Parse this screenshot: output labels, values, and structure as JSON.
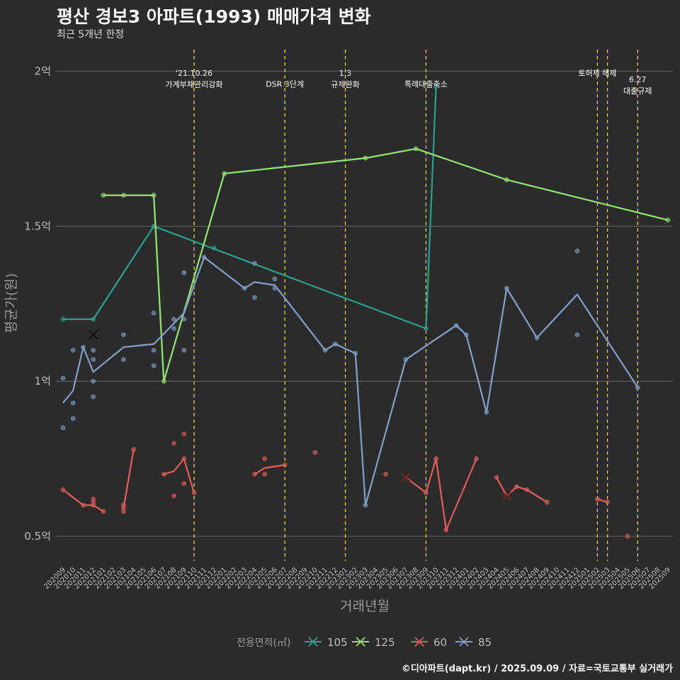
{
  "header": {
    "title": "평산 경보3 아파트(1993) 매매가격 변화",
    "subtitle": "최근 5개년 한정"
  },
  "footer": {
    "credit": "©디아파트(dapt.kr) / 2025.09.09 / 자료=국토교통부 실거래가"
  },
  "chart_data": {
    "type": "line",
    "xlabel": "거래년월",
    "ylabel": "평균가(원)",
    "categories": [
      "202009",
      "202010",
      "202011",
      "202012",
      "202101",
      "202102",
      "202103",
      "202104",
      "202105",
      "202106",
      "202107",
      "202108",
      "202109",
      "202110",
      "202111",
      "202112",
      "202201",
      "202202",
      "202203",
      "202204",
      "202205",
      "202206",
      "202207",
      "202208",
      "202209",
      "202210",
      "202211",
      "202212",
      "202301",
      "202302",
      "202303",
      "202304",
      "202305",
      "202306",
      "202307",
      "202308",
      "202309",
      "202310",
      "202311",
      "202312",
      "202401",
      "202402",
      "202403",
      "202404",
      "202405",
      "202406",
      "202407",
      "202408",
      "202409",
      "202410",
      "202411",
      "202412",
      "202501",
      "202502",
      "202503",
      "202504",
      "202505",
      "202506",
      "202507",
      "202508",
      "202509"
    ],
    "y_ticks": [
      {
        "value": 0.5,
        "label": "0.5억"
      },
      {
        "value": 1.0,
        "label": "1억"
      },
      {
        "value": 1.5,
        "label": "1.5억"
      },
      {
        "value": 2.0,
        "label": "2억"
      }
    ],
    "ylim": [
      0.42,
      2.07
    ],
    "legend": {
      "title": "전용면적(㎡)",
      "position": "bottom"
    },
    "series": [
      {
        "name": "105",
        "color": "#2a9d8f",
        "line": [
          [
            "202009",
            1.2
          ],
          [
            "202012",
            1.2
          ],
          [
            "202106",
            1.5
          ],
          [
            "202309",
            1.17
          ],
          [
            "202310",
            1.95
          ]
        ],
        "points": [
          [
            "202009",
            1.2
          ],
          [
            "202012",
            1.2
          ],
          [
            "202106",
            1.5
          ],
          [
            "202112",
            1.43
          ],
          [
            "202309",
            1.17
          ],
          [
            "202310",
            1.95
          ]
        ],
        "crosses": []
      },
      {
        "name": "125",
        "color": "#90e070",
        "line": [
          [
            "202101",
            1.6
          ],
          [
            "202103",
            1.6
          ],
          [
            "202106",
            1.6
          ],
          [
            "202107",
            1.0
          ],
          [
            "202201",
            1.67
          ],
          [
            "202303",
            1.72
          ],
          [
            "202308",
            1.75
          ],
          [
            "202405",
            1.65
          ],
          [
            "202509",
            1.52
          ]
        ],
        "points": [
          [
            "202101",
            1.6
          ],
          [
            "202103",
            1.6
          ],
          [
            "202106",
            1.6
          ],
          [
            "202107",
            1.0
          ],
          [
            "202201",
            1.67
          ],
          [
            "202303",
            1.72
          ],
          [
            "202308",
            1.75
          ],
          [
            "202405",
            1.65
          ],
          [
            "202509",
            1.52
          ]
        ],
        "crosses": []
      },
      {
        "name": "60",
        "color": "#e05a5a",
        "line": [
          [
            [
              "202009",
              0.65
            ],
            [
              "202011",
              0.6
            ],
            [
              "202012",
              0.6
            ],
            [
              "202101",
              0.58
            ]
          ],
          [
            [
              "202103",
              0.59
            ],
            [
              "202104",
              0.78
            ]
          ],
          [
            [
              "202107",
              0.7
            ],
            [
              "202108",
              0.71
            ],
            [
              "202109",
              0.75
            ],
            [
              "202110",
              0.64
            ]
          ],
          [
            [
              "202204",
              0.7
            ],
            [
              "202205",
              0.72
            ],
            [
              "202207",
              0.73
            ]
          ],
          [
            [
              "202307",
              0.69
            ],
            [
              "202309",
              0.64
            ],
            [
              "202310",
              0.75
            ],
            [
              "202311",
              0.52
            ],
            [
              "202402",
              0.75
            ]
          ],
          [
            [
              "202404",
              0.69
            ],
            [
              "202405",
              0.63
            ],
            [
              "202406",
              0.66
            ],
            [
              "202407",
              0.65
            ],
            [
              "202409",
              0.61
            ]
          ],
          [
            [
              "202502",
              0.62
            ],
            [
              "202503",
              0.61
            ]
          ]
        ],
        "points": [
          [
            "202009",
            0.65
          ],
          [
            "202011",
            0.6
          ],
          [
            "202012",
            0.61
          ],
          [
            "202012",
            0.62
          ],
          [
            "202012",
            0.6
          ],
          [
            "202101",
            0.58
          ],
          [
            "202103",
            0.58
          ],
          [
            "202103",
            0.59
          ],
          [
            "202103",
            0.6
          ],
          [
            "202104",
            0.78
          ],
          [
            "202107",
            0.7
          ],
          [
            "202108",
            0.8
          ],
          [
            "202108",
            0.63
          ],
          [
            "202109",
            0.83
          ],
          [
            "202109",
            0.67
          ],
          [
            "202109",
            0.75
          ],
          [
            "202110",
            0.64
          ],
          [
            "202204",
            0.7
          ],
          [
            "202205",
            0.75
          ],
          [
            "202205",
            0.7
          ],
          [
            "202207",
            0.73
          ],
          [
            "202210",
            0.77
          ],
          [
            "202305",
            0.7
          ],
          [
            "202309",
            0.64
          ],
          [
            "202310",
            0.75
          ],
          [
            "202311",
            0.52
          ],
          [
            "202402",
            0.75
          ],
          [
            "202404",
            0.69
          ],
          [
            "202406",
            0.66
          ],
          [
            "202407",
            0.65
          ],
          [
            "202409",
            0.61
          ],
          [
            "202502",
            0.62
          ],
          [
            "202503",
            0.61
          ],
          [
            "202505",
            0.5
          ]
        ],
        "crosses": [
          [
            "202307",
            0.69
          ],
          [
            "202405",
            0.63
          ]
        ]
      },
      {
        "name": "85",
        "color": "#7f9cc4",
        "line": [
          [
            "202009",
            0.93
          ],
          [
            "202010",
            0.97
          ],
          [
            "202011",
            1.11
          ],
          [
            "202012",
            1.03
          ],
          [
            "202103",
            1.11
          ],
          [
            "202106",
            1.12
          ],
          [
            "202109",
            1.22
          ],
          [
            "202111",
            1.4
          ],
          [
            "202203",
            1.3
          ],
          [
            "202204",
            1.32
          ],
          [
            "202206",
            1.31
          ],
          [
            "202211",
            1.1
          ],
          [
            "202212",
            1.12
          ],
          [
            "202302",
            1.09
          ],
          [
            "202303",
            0.6
          ],
          [
            "202307",
            1.07
          ],
          [
            "202312",
            1.18
          ],
          [
            "202401",
            1.15
          ],
          [
            "202403",
            0.9
          ],
          [
            "202405",
            1.3
          ],
          [
            "202408",
            1.14
          ],
          [
            "202412",
            1.28
          ],
          [
            "202506",
            0.98
          ]
        ],
        "points": [
          [
            "202009",
            1.01
          ],
          [
            "202009",
            0.85
          ],
          [
            "202010",
            1.1
          ],
          [
            "202010",
            0.93
          ],
          [
            "202010",
            0.88
          ],
          [
            "202011",
            1.11
          ],
          [
            "202012",
            1.1
          ],
          [
            "202012",
            1.07
          ],
          [
            "202012",
            1.0
          ],
          [
            "202012",
            0.95
          ],
          [
            "202103",
            1.15
          ],
          [
            "202103",
            1.07
          ],
          [
            "202106",
            1.22
          ],
          [
            "202106",
            1.1
          ],
          [
            "202106",
            1.05
          ],
          [
            "202108",
            1.2
          ],
          [
            "202108",
            1.17
          ],
          [
            "202109",
            1.35
          ],
          [
            "202109",
            1.2
          ],
          [
            "202109",
            1.1
          ],
          [
            "202111",
            1.4
          ],
          [
            "202203",
            1.3
          ],
          [
            "202204",
            1.38
          ],
          [
            "202204",
            1.27
          ],
          [
            "202206",
            1.33
          ],
          [
            "202206",
            1.3
          ],
          [
            "202211",
            1.1
          ],
          [
            "202212",
            1.12
          ],
          [
            "202302",
            1.09
          ],
          [
            "202303",
            0.6
          ],
          [
            "202307",
            1.07
          ],
          [
            "202312",
            1.18
          ],
          [
            "202401",
            1.15
          ],
          [
            "202403",
            0.9
          ],
          [
            "202405",
            1.3
          ],
          [
            "202408",
            1.14
          ],
          [
            "202412",
            1.42
          ],
          [
            "202412",
            1.15
          ],
          [
            "202506",
            0.98
          ]
        ],
        "crosses": [
          [
            "202012",
            1.15
          ]
        ]
      }
    ],
    "annotations": [
      {
        "x": "202110",
        "lines": [
          "'21.10.26",
          "가계부채관리강화"
        ],
        "y": 1.985
      },
      {
        "x": "202207",
        "lines": [
          "DSR 3단계"
        ],
        "y": 1.95
      },
      {
        "x": "202301",
        "lines": [
          "1.3",
          "규제완화"
        ],
        "y": 1.985
      },
      {
        "x": "202309",
        "lines": [
          "특례대출축소"
        ],
        "y": 1.95
      },
      {
        "x": "202502",
        "lines": [
          "토허제 해제"
        ],
        "y": 1.985
      },
      {
        "x": "202503",
        "lines": [],
        "y": 1.985
      },
      {
        "x": "202506",
        "lines": [
          "6.27",
          "대출규제"
        ],
        "y": 1.965
      }
    ]
  }
}
